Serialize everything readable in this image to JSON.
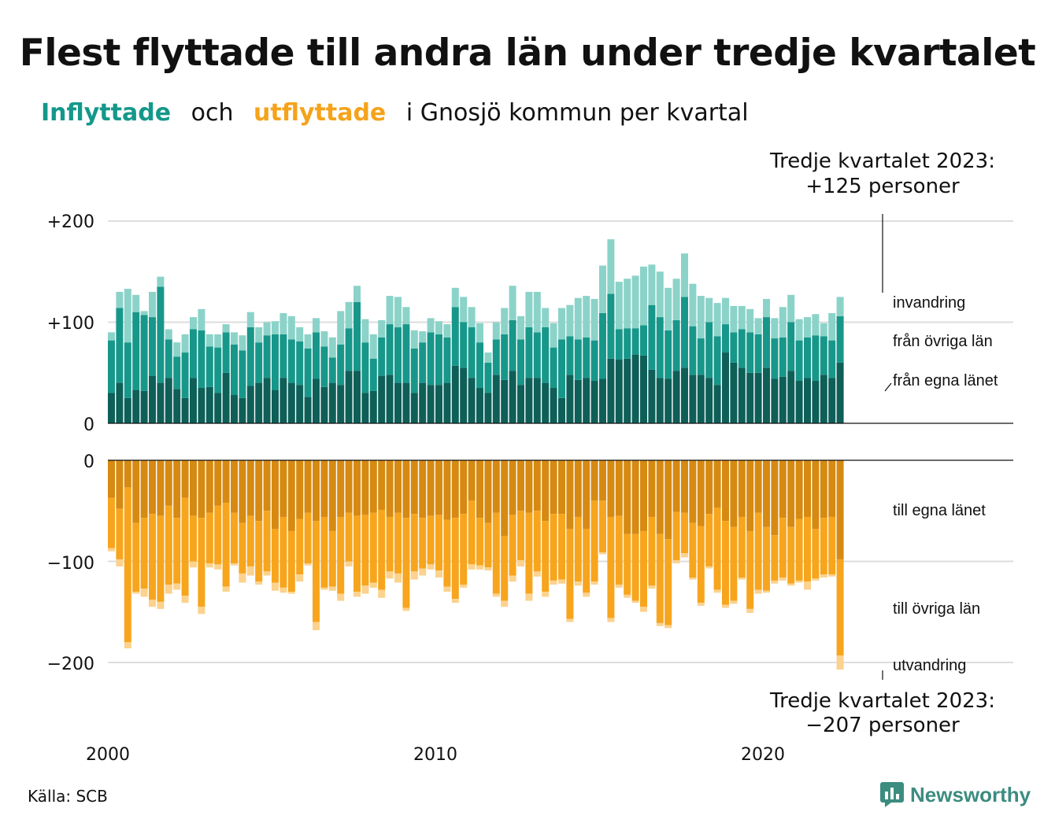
{
  "title": "Flest flyttade till andra län under tredje kvartalet",
  "subtitle": {
    "part1": "Inflyttade",
    "part2": "och",
    "part3": "utflyttade",
    "part4": "i Gnosjö kommun per kvartal"
  },
  "colors": {
    "in_egna": "#0e5f58",
    "in_ovriga": "#17978a",
    "in_invandring": "#8bd3c9",
    "out_egna": "#d68a12",
    "out_ovriga": "#f7a51d",
    "out_utvandring": "#fbd28e",
    "grid": "#dddddd",
    "subtitle_in": "#14988a",
    "subtitle_out": "#f5a31b"
  },
  "source": "Källa: SCB",
  "brand": {
    "name": "Newsworthy",
    "icon": "bar-chart-speech-icon"
  },
  "annotations": {
    "top_line1": "Tredje kvartalet 2023:",
    "top_line2": "+125 personer",
    "bottom_line1": "Tredje kvartalet 2023:",
    "bottom_line2": "−207 personer"
  },
  "chart_data": {
    "type": "bar",
    "x_start": "2000 Q1",
    "x_end": "2023 Q3",
    "x_tick_labels": [
      "2000",
      "2010",
      "2020"
    ],
    "y_ticks_top": [
      "+200",
      "+100",
      "0"
    ],
    "y_ticks_bottom": [
      "0",
      "−100",
      "−200"
    ],
    "series_labels_top": [
      "invandring",
      "från övriga län",
      "från egna länet"
    ],
    "series_labels_bottom": [
      "till egna länet",
      "till övriga län",
      "utvandring"
    ],
    "inflyttade": {
      "fran_egna_lanet": [
        30,
        40,
        25,
        33,
        32,
        47,
        40,
        45,
        34,
        25,
        45,
        35,
        36,
        30,
        50,
        28,
        25,
        37,
        40,
        45,
        33,
        45,
        40,
        38,
        26,
        44,
        36,
        40,
        38,
        52,
        52,
        30,
        32,
        47,
        48,
        40,
        40,
        30,
        40,
        38,
        38,
        40,
        57,
        55,
        45,
        35,
        30,
        48,
        43,
        52,
        38,
        45,
        45,
        40,
        35,
        25,
        48,
        43,
        45,
        42,
        44,
        64,
        63,
        64,
        68,
        67,
        53,
        45,
        44,
        52,
        55,
        48,
        48,
        45,
        38,
        70,
        60,
        55,
        50,
        50,
        55,
        44,
        46,
        52,
        42,
        45,
        42,
        48,
        45,
        60
      ],
      "fran_ovriga_lan": [
        52,
        74,
        55,
        77,
        75,
        58,
        95,
        38,
        32,
        45,
        48,
        57,
        40,
        45,
        40,
        50,
        47,
        58,
        40,
        42,
        55,
        43,
        43,
        43,
        48,
        46,
        40,
        25,
        40,
        42,
        68,
        50,
        32,
        38,
        50,
        55,
        58,
        44,
        40,
        52,
        50,
        45,
        58,
        45,
        50,
        45,
        30,
        35,
        45,
        50,
        45,
        50,
        45,
        55,
        40,
        58,
        38,
        40,
        40,
        40,
        65,
        64,
        30,
        30,
        26,
        30,
        64,
        60,
        48,
        50,
        70,
        48,
        36,
        55,
        48,
        28,
        30,
        38,
        40,
        38,
        50,
        40,
        39,
        48,
        40,
        40,
        45,
        38,
        37,
        46
      ],
      "invandring": [
        8,
        16,
        53,
        17,
        4,
        25,
        10,
        10,
        14,
        18,
        12,
        21,
        12,
        13,
        8,
        12,
        15,
        15,
        15,
        13,
        13,
        21,
        23,
        14,
        14,
        14,
        15,
        20,
        33,
        26,
        16,
        23,
        24,
        17,
        28,
        30,
        17,
        18,
        11,
        14,
        13,
        13,
        19,
        25,
        20,
        19,
        10,
        17,
        26,
        34,
        23,
        35,
        40,
        19,
        24,
        31,
        31,
        41,
        41,
        41,
        47,
        54,
        47,
        49,
        52,
        58,
        40,
        45,
        42,
        41,
        43,
        42,
        42,
        24,
        33,
        26,
        26,
        23,
        23,
        16,
        18,
        20,
        30,
        27,
        21,
        20,
        21,
        13,
        27,
        19
      ]
    },
    "utflyttade": {
      "till_egna_lanet": [
        37,
        48,
        27,
        62,
        57,
        53,
        55,
        45,
        57,
        37,
        55,
        57,
        52,
        45,
        42,
        52,
        62,
        55,
        60,
        50,
        68,
        56,
        70,
        58,
        52,
        60,
        56,
        70,
        56,
        52,
        55,
        54,
        52,
        49,
        56,
        52,
        57,
        53,
        57,
        55,
        54,
        59,
        57,
        53,
        40,
        57,
        62,
        52,
        75,
        54,
        50,
        52,
        50,
        60,
        53,
        53,
        68,
        56,
        68,
        40,
        40,
        56,
        55,
        73,
        73,
        70,
        56,
        73,
        78,
        51,
        52,
        62,
        65,
        53,
        47,
        60,
        66,
        56,
        70,
        52,
        66,
        74,
        57,
        66,
        58,
        56,
        68,
        57,
        56,
        98
      ],
      "till_ovriga_lan": [
        50,
        50,
        153,
        68,
        70,
        85,
        85,
        78,
        65,
        97,
        45,
        88,
        50,
        58,
        83,
        50,
        50,
        50,
        60,
        60,
        53,
        70,
        60,
        55,
        50,
        100,
        70,
        55,
        76,
        48,
        75,
        70,
        69,
        79,
        54,
        60,
        89,
        57,
        50,
        48,
        55,
        66,
        80,
        70,
        63,
        47,
        44,
        80,
        64,
        60,
        49,
        80,
        60,
        70,
        66,
        65,
        89,
        64,
        63,
        80,
        51,
        100,
        68,
        60,
        66,
        75,
        68,
        88,
        85,
        48,
        40,
        54,
        76,
        52,
        81,
        83,
        73,
        60,
        77,
        76,
        63,
        45,
        59,
        56,
        61,
        64,
        49,
        56,
        57,
        95
      ],
      "utvandring": [
        3,
        7,
        6,
        2,
        8,
        7,
        7,
        9,
        6,
        7,
        6,
        7,
        4,
        5,
        5,
        2,
        9,
        9,
        3,
        4,
        8,
        5,
        2,
        7,
        2,
        8,
        2,
        4,
        7,
        5,
        5,
        8,
        5,
        8,
        7,
        9,
        3,
        8,
        7,
        5,
        7,
        5,
        4,
        3,
        5,
        4,
        3,
        3,
        6,
        6,
        6,
        7,
        5,
        5,
        4,
        4,
        3,
        4,
        4,
        3,
        2,
        4,
        3,
        3,
        2,
        5,
        3,
        3,
        3,
        3,
        4,
        2,
        3,
        2,
        3,
        3,
        3,
        2,
        4,
        4,
        2,
        3,
        3,
        2,
        2,
        8,
        2,
        3,
        2,
        14
      ]
    }
  }
}
